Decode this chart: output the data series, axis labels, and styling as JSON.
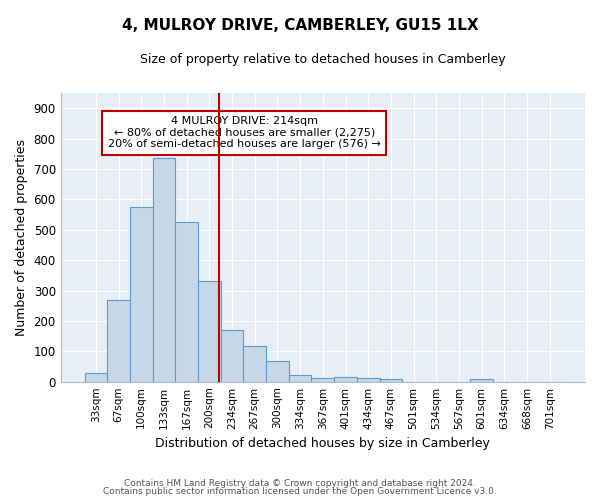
{
  "title1": "4, MULROY DRIVE, CAMBERLEY, GU15 1LX",
  "title2": "Size of property relative to detached houses in Camberley",
  "xlabel": "Distribution of detached houses by size in Camberley",
  "ylabel": "Number of detached properties",
  "categories": [
    "33sqm",
    "67sqm",
    "100sqm",
    "133sqm",
    "167sqm",
    "200sqm",
    "234sqm",
    "267sqm",
    "300sqm",
    "334sqm",
    "367sqm",
    "401sqm",
    "434sqm",
    "467sqm",
    "501sqm",
    "534sqm",
    "567sqm",
    "601sqm",
    "634sqm",
    "668sqm",
    "701sqm"
  ],
  "values": [
    27,
    270,
    575,
    735,
    525,
    330,
    170,
    117,
    68,
    22,
    12,
    17,
    11,
    10,
    0,
    0,
    0,
    10,
    0,
    0,
    0
  ],
  "bar_color": "#c5d8e8",
  "bar_edge_color": "#5b9bd5",
  "vline_color": "#c00000",
  "annotation_title": "4 MULROY DRIVE: 214sqm",
  "annotation_line1": "← 80% of detached houses are smaller (2,275)",
  "annotation_line2": "20% of semi-detached houses are larger (576) →",
  "box_color": "#c00000",
  "ylim": [
    0,
    950
  ],
  "yticks": [
    0,
    100,
    200,
    300,
    400,
    500,
    600,
    700,
    800,
    900
  ],
  "footer1": "Contains HM Land Registry data © Crown copyright and database right 2024.",
  "footer2": "Contains public sector information licensed under the Open Government Licence v3.0.",
  "background_color": "#e8eef5",
  "plot_background": "#ffffff",
  "grid_color": "#ffffff",
  "spine_color": "#b0b8c8"
}
